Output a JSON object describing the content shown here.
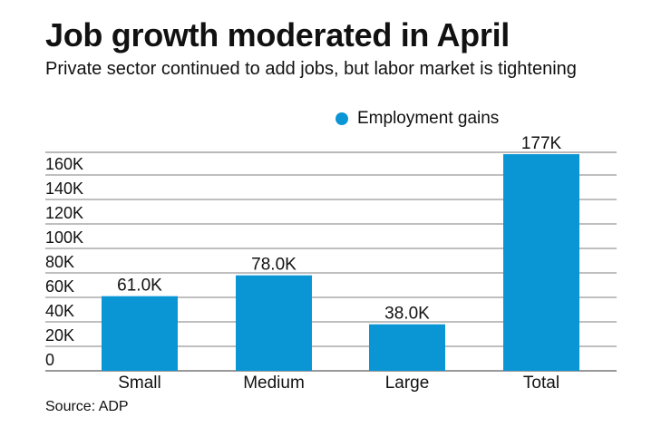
{
  "chart_data": {
    "type": "bar",
    "title": "Job growth moderated in April",
    "subtitle": "Private sector continued to add jobs, but labor market is tightening",
    "categories": [
      "Small",
      "Medium",
      "Large",
      "Total"
    ],
    "series": [
      {
        "name": "Employment gains",
        "values": [
          61000,
          78000,
          38000,
          177000
        ],
        "labels": [
          "61.0K",
          "78.0K",
          "38.0K",
          "177K"
        ],
        "color": "#0a96d4"
      }
    ],
    "yticks": [
      0,
      20000,
      40000,
      60000,
      80000,
      100000,
      120000,
      140000,
      160000
    ],
    "ytick_labels": [
      "0",
      "20K",
      "40K",
      "60K",
      "80K",
      "100K",
      "120K",
      "140K",
      "160K"
    ],
    "ylim": [
      0,
      180000
    ],
    "grid": true,
    "legend_position": "top-right",
    "xlabel": "",
    "ylabel": ""
  },
  "source": "Source: ADP"
}
